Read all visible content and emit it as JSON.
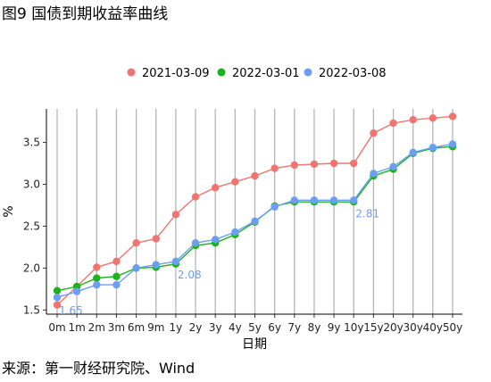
{
  "figure_title": "图9 国债到期收益率曲线",
  "source_note": "来源：第一财经研究院、Wind",
  "chart_data": {
    "type": "line",
    "xlabel": "日期",
    "ylabel": "%",
    "ylim": [
      1.45,
      3.9
    ],
    "yticks": [
      1.5,
      2.0,
      2.5,
      3.0,
      3.5
    ],
    "ytick_labels": [
      "1.5",
      "2.0",
      "2.5",
      "3.0",
      "3.5"
    ],
    "grid": "vertical lines at each category",
    "legend_position": "top",
    "categories": [
      "0m",
      "1m",
      "2m",
      "3m",
      "6m",
      "9m",
      "1y",
      "2y",
      "3y",
      "4y",
      "5y",
      "6y",
      "7y",
      "8y",
      "9y",
      "10y",
      "15y",
      "20y",
      "30y",
      "40y",
      "50y"
    ],
    "series": [
      {
        "name": "2021-03-09",
        "color": "#F07470",
        "values": [
          1.56,
          1.78,
          2.01,
          2.08,
          2.3,
          2.35,
          2.64,
          2.85,
          2.96,
          3.03,
          3.1,
          3.19,
          3.23,
          3.24,
          3.25,
          3.25,
          3.61,
          3.73,
          3.77,
          3.79,
          3.81
        ]
      },
      {
        "name": "2022-03-01",
        "color": "#1BB31B",
        "values": [
          1.73,
          1.78,
          1.88,
          1.9,
          2.0,
          2.01,
          2.05,
          2.27,
          2.3,
          2.4,
          2.55,
          2.74,
          2.79,
          2.79,
          2.79,
          2.79,
          3.1,
          3.18,
          3.37,
          3.43,
          3.45
        ]
      },
      {
        "name": "2022-03-08",
        "color": "#6C9EF8",
        "values": [
          1.65,
          1.72,
          1.8,
          1.8,
          2.0,
          2.04,
          2.08,
          2.3,
          2.34,
          2.43,
          2.56,
          2.73,
          2.81,
          2.81,
          2.81,
          2.81,
          3.13,
          3.21,
          3.38,
          3.44,
          3.48
        ]
      }
    ],
    "annotations": [
      {
        "text": "1.65",
        "series": "2022-03-08",
        "category": "0m",
        "color": "#6C9EF8"
      },
      {
        "text": "2.08",
        "series": "2022-03-08",
        "category": "1y",
        "color": "#6C9EF8"
      },
      {
        "text": "2.81",
        "series": "2022-03-08",
        "category": "10y",
        "color": "#6C9EF8"
      }
    ]
  }
}
